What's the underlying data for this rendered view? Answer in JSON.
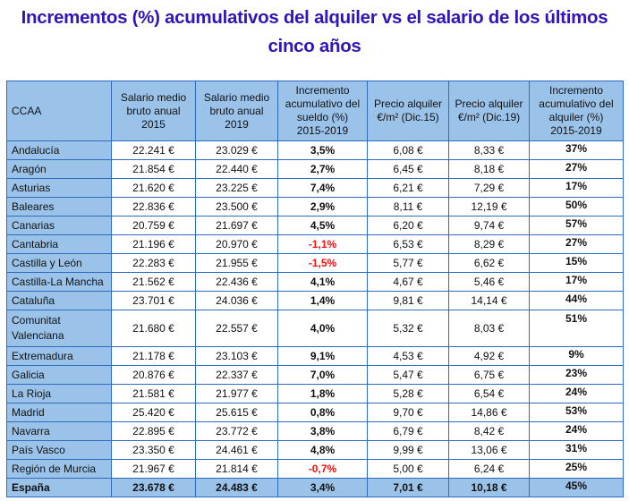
{
  "title": {
    "line1": "Incrementos (%) acumulativos del alquiler vs el salario de los últimos",
    "line2": "cinco años"
  },
  "colors": {
    "title": "#3314b8",
    "header_bg": "#9bc3ea",
    "border": "#2e6cc0",
    "negative": "#ee1111"
  },
  "table": {
    "headers": {
      "ccaa": "CCAA",
      "salary_2015": [
        "Salario medio",
        "bruto anual",
        "2015"
      ],
      "salary_2019": [
        "Salario medio",
        "bruto anual",
        "2019"
      ],
      "salary_increase": [
        "Incremento",
        "acumulativo del",
        "sueldo (%)",
        "2015-2019"
      ],
      "rent_dic15": [
        "Precio alquiler",
        "€/m² (Dic.15)"
      ],
      "rent_dic19": [
        "Precio alquiler",
        "€/m² (Dic.19)"
      ],
      "rent_increase": [
        "Incremento",
        "acumulativo del",
        "alquiler (%)",
        "2015-2019"
      ]
    },
    "rows": [
      {
        "region": "Andalucía",
        "s2015": "22.241 €",
        "s2019": "23.029 €",
        "sinc": "3,5%",
        "r15": "6,08 €",
        "r19": "8,33 €",
        "rinc": "37%"
      },
      {
        "region": "Aragón",
        "s2015": "21.854 €",
        "s2019": "22.440 €",
        "sinc": "2,7%",
        "r15": "6,45 €",
        "r19": "8,18 €",
        "rinc": "27%"
      },
      {
        "region": "Asturias",
        "s2015": "21.620 €",
        "s2019": "23.225 €",
        "sinc": "7,4%",
        "r15": "6,21 €",
        "r19": "7,29 €",
        "rinc": "17%"
      },
      {
        "region": "Baleares",
        "s2015": "22.836 €",
        "s2019": "23.500 €",
        "sinc": "2,9%",
        "r15": "8,11 €",
        "r19": "12,19 €",
        "rinc": "50%"
      },
      {
        "region": "Canarias",
        "s2015": "20.759 €",
        "s2019": "21.697 €",
        "sinc": "4,5%",
        "r15": "6,20 €",
        "r19": "9,74 €",
        "rinc": "57%"
      },
      {
        "region": "Cantabria",
        "s2015": "21.196 €",
        "s2019": "20.970 €",
        "sinc": "-1,1%",
        "r15": "6,53 €",
        "r19": "8,29 €",
        "rinc": "27%"
      },
      {
        "region": "Castilla y León",
        "s2015": "22.283 €",
        "s2019": "21.955 €",
        "sinc": "-1,5%",
        "r15": "5,77 €",
        "r19": "6,62 €",
        "rinc": "15%"
      },
      {
        "region": "Castilla-La Mancha",
        "s2015": "21.562 €",
        "s2019": "22.436 €",
        "sinc": "4,1%",
        "r15": "4,67 €",
        "r19": "5,46 €",
        "rinc": "17%"
      },
      {
        "region": "Cataluña",
        "s2015": "23.701 €",
        "s2019": "24.036 €",
        "sinc": "1,4%",
        "r15": "9,81 €",
        "r19": "14,14 €",
        "rinc": "44%"
      },
      {
        "region": "Comunitat Valenciana",
        "s2015": "21.680 €",
        "s2019": "22.557 €",
        "sinc": "4,0%",
        "r15": "5,32 €",
        "r19": "8,03 €",
        "rinc": "51%"
      },
      {
        "region": "Extremadura",
        "s2015": "21.178 €",
        "s2019": "23.103 €",
        "sinc": "9,1%",
        "r15": "4,53 €",
        "r19": "4,92 €",
        "rinc": "9%"
      },
      {
        "region": "Galicia",
        "s2015": "20.876 €",
        "s2019": "22.337 €",
        "sinc": "7,0%",
        "r15": "5,47 €",
        "r19": "6,75 €",
        "rinc": "23%"
      },
      {
        "region": "La Rioja",
        "s2015": "21.581 €",
        "s2019": "21.977 €",
        "sinc": "1,8%",
        "r15": "5,28 €",
        "r19": "6,54 €",
        "rinc": "24%"
      },
      {
        "region": "Madrid",
        "s2015": "25.420 €",
        "s2019": "25.615 €",
        "sinc": "0,8%",
        "r15": "9,70 €",
        "r19": "14,86 €",
        "rinc": "53%"
      },
      {
        "region": "Navarra",
        "s2015": "22.895 €",
        "s2019": "23.772 €",
        "sinc": "3,8%",
        "r15": "6,79 €",
        "r19": "8,42 €",
        "rinc": "24%"
      },
      {
        "region": "País Vasco",
        "s2015": "23.350 €",
        "s2019": "24.461 €",
        "sinc": "4,8%",
        "r15": "9,99 €",
        "r19": "13,06 €",
        "rinc": "31%"
      },
      {
        "region": "Región de Murcia",
        "s2015": "21.967 €",
        "s2019": "21.814 €",
        "sinc": "-0,7%",
        "r15": "5,00 €",
        "r19": "6,24 €",
        "rinc": "25%"
      }
    ],
    "total": {
      "region": "España",
      "s2015": "23.678 €",
      "s2019": "24.483 €",
      "sinc": "3,4%",
      "r15": "7,01 €",
      "r19": "10,18 €",
      "rinc": "45%"
    }
  }
}
